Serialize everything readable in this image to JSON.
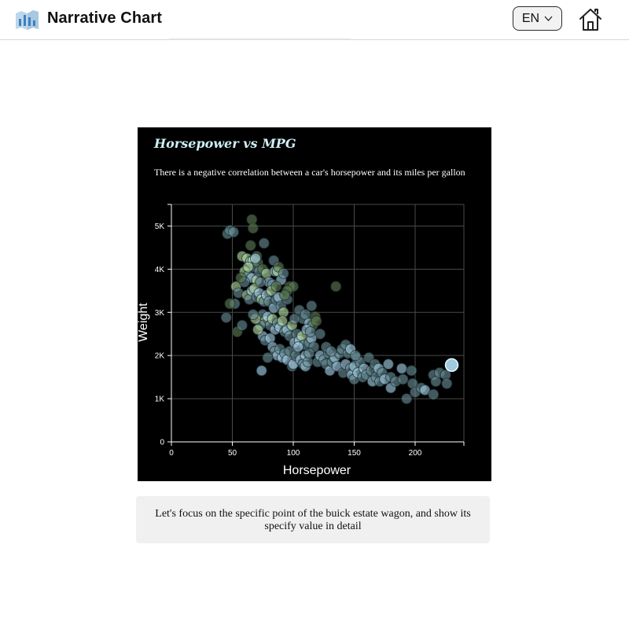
{
  "header": {
    "app_title": "Narrative Chart",
    "language": "EN",
    "logo_icon": "chart-logo-icon",
    "home_icon": "home-icon",
    "chevron_icon": "chevron-down-icon"
  },
  "caption": "Let's focus on the specific point of the buick estate wagon, and show its specify value in detail",
  "chart_data": {
    "type": "scatter",
    "title": "Horsepower vs MPG",
    "subtitle": "There is a negative correlation between a car's horsepower and its miles per gallon",
    "xlabel": "Horsepower",
    "ylabel": "Weight",
    "xlim": [
      0,
      240
    ],
    "ylim": [
      0,
      5500
    ],
    "x_ticks": [
      0,
      50,
      100,
      150,
      200
    ],
    "y_ticks": [
      0,
      1000,
      2000,
      3000,
      4000,
      5000
    ],
    "x_tick_labels": [
      "0",
      "50",
      "100",
      "150",
      "200"
    ],
    "y_tick_labels": [
      "0",
      "1K",
      "2K",
      "3K",
      "4K",
      "5K"
    ],
    "grid": true,
    "background": "#000000",
    "colors": {
      "blue": "#a8d4ea",
      "green": "#b6dfa2",
      "teal": "#6a8f98",
      "dark_green": "#5f7d52"
    },
    "highlight": {
      "x": 230,
      "y": 1780,
      "color": "#a8d4ea"
    },
    "points": [
      [
        46,
        4820,
        "teal"
      ],
      [
        48,
        4900,
        "teal"
      ],
      [
        51,
        4860,
        "teal"
      ],
      [
        66,
        5150,
        "dark_green"
      ],
      [
        67,
        4950,
        "dark_green"
      ],
      [
        65,
        4550,
        "dark_green"
      ],
      [
        76,
        4600,
        "teal"
      ],
      [
        58,
        4300,
        "green"
      ],
      [
        62,
        4250,
        "green"
      ],
      [
        65,
        4180,
        "blue"
      ],
      [
        67,
        4200,
        "green"
      ],
      [
        68,
        4050,
        "teal"
      ],
      [
        71,
        4150,
        "dark_green"
      ],
      [
        70,
        4300,
        "dark_green"
      ],
      [
        60,
        3950,
        "green"
      ],
      [
        63,
        3850,
        "teal"
      ],
      [
        66,
        3800,
        "blue"
      ],
      [
        70,
        3750,
        "green"
      ],
      [
        72,
        3950,
        "teal"
      ],
      [
        75,
        4000,
        "dark_green"
      ],
      [
        78,
        3900,
        "green"
      ],
      [
        84,
        4200,
        "teal"
      ],
      [
        85,
        3950,
        "blue"
      ],
      [
        87,
        3950,
        "green"
      ],
      [
        88,
        4050,
        "dark_green"
      ],
      [
        90,
        3750,
        "blue"
      ],
      [
        92,
        3900,
        "teal"
      ],
      [
        80,
        3700,
        "blue"
      ],
      [
        83,
        3650,
        "teal"
      ],
      [
        53,
        3600,
        "green"
      ],
      [
        55,
        3450,
        "teal"
      ],
      [
        52,
        3200,
        "teal"
      ],
      [
        48,
        3200,
        "dark_green"
      ],
      [
        45,
        2880,
        "teal"
      ],
      [
        54,
        2550,
        "dark_green"
      ],
      [
        58,
        2700,
        "teal"
      ],
      [
        62,
        3400,
        "green"
      ],
      [
        64,
        3300,
        "teal"
      ],
      [
        66,
        3500,
        "blue"
      ],
      [
        68,
        3550,
        "green"
      ],
      [
        70,
        3350,
        "teal"
      ],
      [
        72,
        3450,
        "blue"
      ],
      [
        74,
        3300,
        "green"
      ],
      [
        76,
        3250,
        "teal"
      ],
      [
        78,
        3400,
        "blue"
      ],
      [
        80,
        3250,
        "teal"
      ],
      [
        82,
        3500,
        "green"
      ],
      [
        84,
        3100,
        "blue"
      ],
      [
        86,
        3300,
        "teal"
      ],
      [
        88,
        3350,
        "blue"
      ],
      [
        90,
        3150,
        "teal"
      ],
      [
        92,
        3000,
        "green"
      ],
      [
        95,
        3300,
        "teal"
      ],
      [
        97,
        3600,
        "dark_green"
      ],
      [
        100,
        3600,
        "dark_green"
      ],
      [
        95,
        3500,
        "dark_green"
      ],
      [
        105,
        3050,
        "teal"
      ],
      [
        108,
        2850,
        "teal"
      ],
      [
        110,
        2950,
        "teal"
      ],
      [
        113,
        2750,
        "blue"
      ],
      [
        115,
        3150,
        "teal"
      ],
      [
        116,
        2700,
        "dark_green"
      ],
      [
        118,
        2900,
        "dark_green"
      ],
      [
        119,
        2800,
        "dark_green"
      ],
      [
        122,
        2500,
        "teal"
      ],
      [
        135,
        3600,
        "dark_green"
      ],
      [
        75,
        2950,
        "teal"
      ],
      [
        77,
        2800,
        "green"
      ],
      [
        79,
        2900,
        "blue"
      ],
      [
        81,
        2700,
        "teal"
      ],
      [
        83,
        2850,
        "green"
      ],
      [
        85,
        2600,
        "blue"
      ],
      [
        87,
        2750,
        "teal"
      ],
      [
        89,
        2650,
        "blue"
      ],
      [
        91,
        2800,
        "green"
      ],
      [
        93,
        2550,
        "teal"
      ],
      [
        95,
        2600,
        "blue"
      ],
      [
        97,
        2450,
        "teal"
      ],
      [
        99,
        2700,
        "green"
      ],
      [
        101,
        2300,
        "blue"
      ],
      [
        103,
        2500,
        "teal"
      ],
      [
        105,
        2350,
        "blue"
      ],
      [
        107,
        2450,
        "green"
      ],
      [
        109,
        2250,
        "teal"
      ],
      [
        111,
        2600,
        "blue"
      ],
      [
        113,
        2300,
        "teal"
      ],
      [
        115,
        2400,
        "blue"
      ],
      [
        117,
        2200,
        "teal"
      ],
      [
        73,
        2700,
        "teal"
      ],
      [
        75,
        2450,
        "blue"
      ],
      [
        77,
        2350,
        "teal"
      ],
      [
        71,
        2600,
        "green"
      ],
      [
        69,
        2850,
        "green"
      ],
      [
        67,
        2950,
        "teal"
      ],
      [
        81,
        2400,
        "blue"
      ],
      [
        83,
        2200,
        "blue"
      ],
      [
        85,
        2100,
        "teal"
      ],
      [
        87,
        2000,
        "blue"
      ],
      [
        89,
        2150,
        "teal"
      ],
      [
        91,
        1950,
        "blue"
      ],
      [
        93,
        2050,
        "teal"
      ],
      [
        95,
        1900,
        "blue"
      ],
      [
        97,
        2100,
        "teal"
      ],
      [
        99,
        1750,
        "teal"
      ],
      [
        100,
        1800,
        "blue"
      ],
      [
        102,
        2000,
        "teal"
      ],
      [
        104,
        2200,
        "blue"
      ],
      [
        106,
        1900,
        "blue"
      ],
      [
        108,
        1800,
        "teal"
      ],
      [
        110,
        1750,
        "blue"
      ],
      [
        110,
        2000,
        "blue"
      ],
      [
        112,
        1850,
        "teal"
      ],
      [
        113,
        2050,
        "teal"
      ],
      [
        79,
        1950,
        "teal"
      ],
      [
        74,
        1650,
        "blue"
      ],
      [
        120,
        1850,
        "teal"
      ],
      [
        122,
        2000,
        "blue"
      ],
      [
        125,
        1900,
        "teal"
      ],
      [
        127,
        1800,
        "teal"
      ],
      [
        129,
        2050,
        "teal"
      ],
      [
        130,
        1650,
        "blue"
      ],
      [
        132,
        1850,
        "teal"
      ],
      [
        134,
        1950,
        "blue"
      ],
      [
        136,
        1750,
        "blue"
      ],
      [
        138,
        2050,
        "teal"
      ],
      [
        140,
        2150,
        "teal"
      ],
      [
        141,
        1600,
        "teal"
      ],
      [
        143,
        1800,
        "blue"
      ],
      [
        145,
        2050,
        "teal"
      ],
      [
        147,
        1700,
        "teal"
      ],
      [
        148,
        1550,
        "blue"
      ],
      [
        150,
        1750,
        "blue"
      ],
      [
        150,
        1450,
        "teal"
      ],
      [
        152,
        1950,
        "teal"
      ],
      [
        153,
        1600,
        "blue"
      ],
      [
        155,
        1850,
        "teal"
      ],
      [
        157,
        1500,
        "teal"
      ],
      [
        158,
        1700,
        "blue"
      ],
      [
        160,
        1550,
        "teal"
      ],
      [
        162,
        1950,
        "teal"
      ],
      [
        164,
        1650,
        "teal"
      ],
      [
        165,
        1400,
        "blue"
      ],
      [
        167,
        1800,
        "teal"
      ],
      [
        168,
        1500,
        "teal"
      ],
      [
        170,
        1700,
        "blue"
      ],
      [
        171,
        1400,
        "teal"
      ],
      [
        173,
        1600,
        "teal"
      ],
      [
        175,
        1450,
        "blue"
      ],
      [
        178,
        1800,
        "blue"
      ],
      [
        180,
        1500,
        "teal"
      ],
      [
        180,
        1250,
        "blue"
      ],
      [
        184,
        1400,
        "teal"
      ],
      [
        189,
        1700,
        "blue"
      ],
      [
        190,
        1450,
        "teal"
      ],
      [
        193,
        1000,
        "teal"
      ],
      [
        197,
        1650,
        "teal"
      ],
      [
        198,
        1350,
        "teal"
      ],
      [
        200,
        1150,
        "teal"
      ],
      [
        205,
        1250,
        "teal"
      ],
      [
        208,
        1200,
        "blue"
      ],
      [
        215,
        1550,
        "teal"
      ],
      [
        215,
        1100,
        "teal"
      ],
      [
        217,
        1400,
        "teal"
      ],
      [
        220,
        1600,
        "teal"
      ],
      [
        225,
        1550,
        "teal"
      ],
      [
        226,
        1350,
        "teal"
      ],
      [
        143,
        2250,
        "teal"
      ],
      [
        147,
        2150,
        "blue"
      ],
      [
        151,
        2000,
        "teal"
      ],
      [
        127,
        2200,
        "teal"
      ],
      [
        131,
        2100,
        "teal"
      ],
      [
        114,
        2550,
        "teal"
      ],
      [
        101,
        2850,
        "teal"
      ],
      [
        60,
        3700,
        "teal"
      ],
      [
        63,
        4050,
        "green"
      ],
      [
        57,
        3800,
        "dark_green"
      ],
      [
        69,
        4250,
        "blue"
      ],
      [
        73,
        3700,
        "teal"
      ],
      [
        86,
        3600,
        "dark_green"
      ],
      [
        93,
        3400,
        "dark_green"
      ]
    ]
  }
}
